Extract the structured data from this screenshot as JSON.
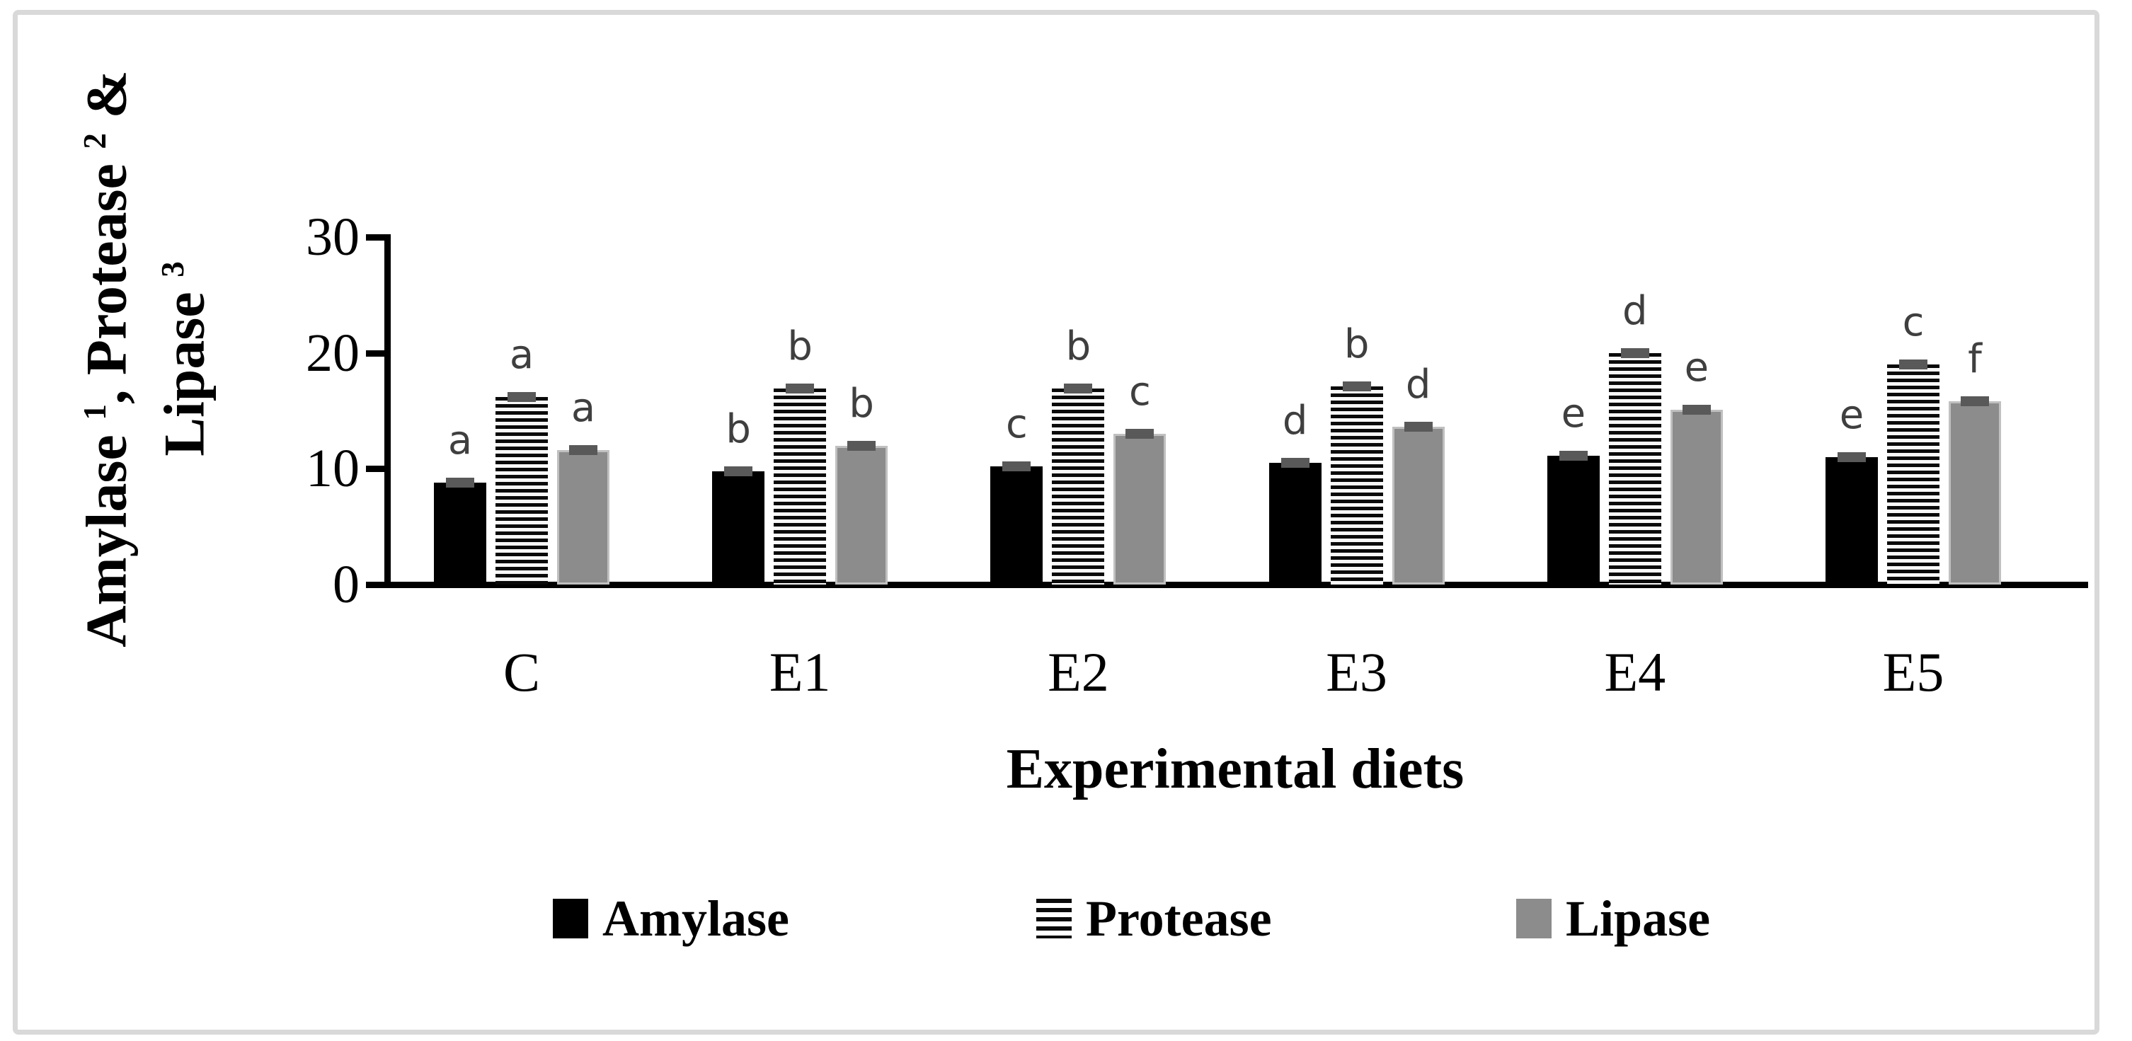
{
  "chart_data": {
    "type": "bar",
    "title": "",
    "xlabel": "Experimental diets",
    "ylabel_lines": [
      [
        [
          "t",
          "Amylase "
        ],
        [
          "sup",
          "1"
        ],
        [
          "t",
          ", Protease "
        ],
        [
          "sup",
          "2"
        ],
        [
          "t",
          " &"
        ]
      ],
      [
        [
          "t",
          "Lipase "
        ],
        [
          "sup",
          "3"
        ]
      ]
    ],
    "categories": [
      "C",
      "E1",
      "E2",
      "E3",
      "E4",
      "E5"
    ],
    "series": [
      {
        "name": "Amylase",
        "pattern": "solid-black",
        "values": [
          8.8,
          9.8,
          10.2,
          10.5,
          11.1,
          11.0
        ],
        "sig_letters": [
          "a",
          "b",
          "c",
          "d",
          "e",
          "e"
        ]
      },
      {
        "name": "Protease",
        "pattern": "h-stripes",
        "values": [
          16.2,
          16.9,
          16.9,
          17.1,
          20.0,
          19.0
        ],
        "sig_letters": [
          "a",
          "b",
          "b",
          "b",
          "d",
          "c"
        ]
      },
      {
        "name": "Lipase",
        "pattern": "solid-gray",
        "values": [
          11.6,
          12.0,
          13.0,
          13.6,
          15.1,
          15.8
        ],
        "sig_letters": [
          "a",
          "b",
          "c",
          "d",
          "e",
          "f"
        ]
      }
    ],
    "yticks": [
      0,
      10,
      20,
      30
    ],
    "ylim": [
      0,
      30
    ],
    "grid": false,
    "error_caps_shown": true,
    "legend_position": "bottom"
  },
  "colors": {
    "bar_black": "#000000",
    "bar_gray": "#8c8c8c",
    "stripe": "#0a0a0a",
    "error_cap": "#595959",
    "sig_letter": "#3f3f3f",
    "axis": "#000000",
    "frame_border": "#d9d9d9",
    "background": "#ffffff"
  }
}
